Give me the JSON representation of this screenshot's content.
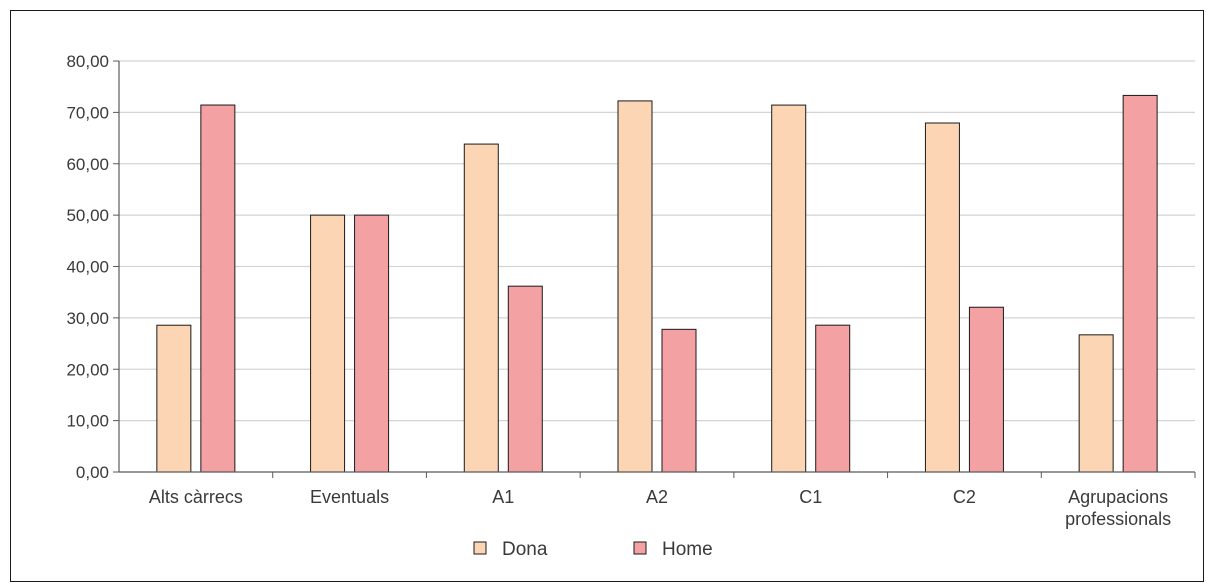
{
  "chart_data": {
    "type": "bar",
    "title": "",
    "xlabel": "",
    "ylabel": "",
    "categories": [
      [
        "Alts càrrecs"
      ],
      [
        "Eventuals"
      ],
      [
        "A1"
      ],
      [
        "A2"
      ],
      [
        "C1"
      ],
      [
        "C2"
      ],
      [
        "Agrupacions",
        "professionals"
      ]
    ],
    "series": [
      {
        "name": "Dona",
        "color": "#fcd5b4",
        "values": [
          28.57,
          50.0,
          63.83,
          72.23,
          71.42,
          67.93,
          26.7
        ]
      },
      {
        "name": "Home",
        "color": "#f4a1a4",
        "values": [
          71.43,
          50.0,
          36.17,
          27.77,
          28.58,
          32.07,
          73.3
        ]
      }
    ],
    "ylim": [
      0,
      80
    ],
    "yticks": [
      "0,00",
      "10,00",
      "20,00",
      "30,00",
      "40,00",
      "50,00",
      "60,00",
      "70,00",
      "80,00"
    ],
    "grid": true,
    "legend_position": "bottom",
    "bar_border_color": "#1a1a1a",
    "grid_color": "#d4d4d4",
    "axis_color": "#5a5a5a"
  }
}
